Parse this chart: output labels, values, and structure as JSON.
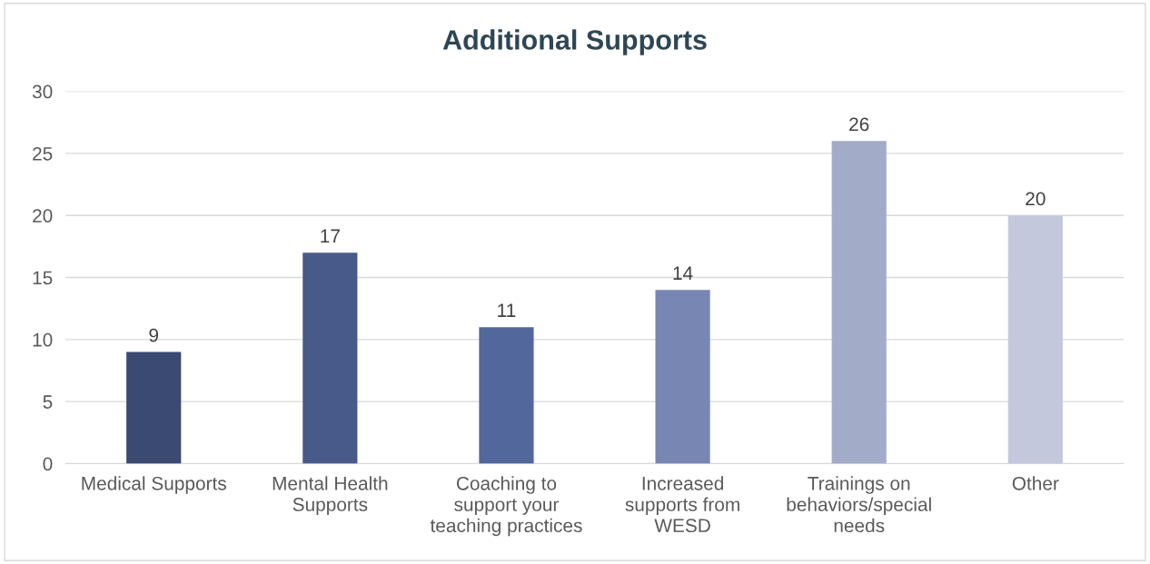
{
  "chart_data": {
    "type": "bar",
    "title": "Additional Supports",
    "categories": [
      "Medical Supports",
      "Mental Health\nSupports",
      "Coaching to\nsupport your\nteaching practices",
      "Increased\nsupports from\nWESD",
      "Trainings on\nbehaviors/special\nneeds",
      "Other"
    ],
    "values": [
      9,
      17,
      11,
      14,
      26,
      20
    ],
    "colors": [
      "#3b4a73",
      "#485a8a",
      "#52689c",
      "#7886b3",
      "#a2abc8",
      "#c4c8dc"
    ],
    "ylim": [
      0,
      30
    ],
    "yticks": [
      0,
      5,
      10,
      15,
      20,
      25,
      30
    ],
    "grid": "y",
    "data_labels": true,
    "legend": false
  }
}
